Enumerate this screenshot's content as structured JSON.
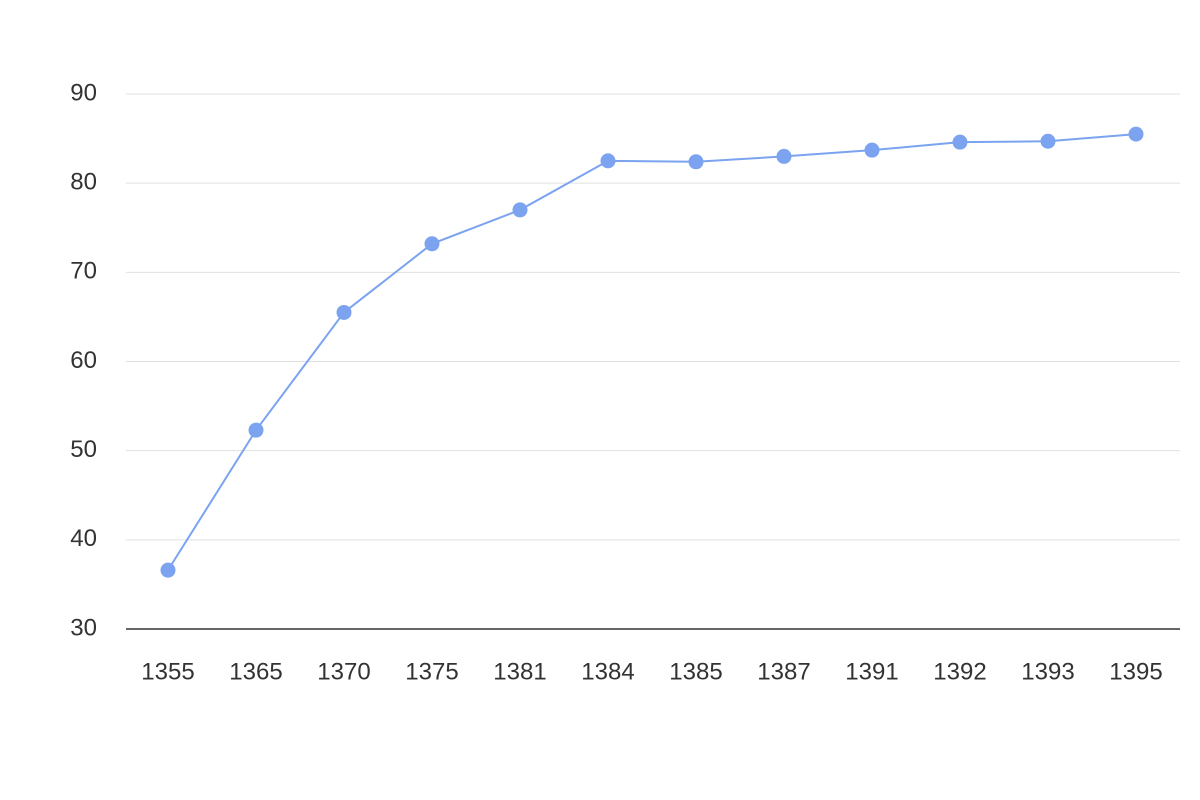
{
  "chart_data": {
    "type": "line",
    "categories": [
      "1355",
      "1365",
      "1370",
      "1375",
      "1381",
      "1384",
      "1385",
      "1387",
      "1391",
      "1392",
      "1393",
      "1395"
    ],
    "series": [
      {
        "color": "#7ba3f0",
        "values": [
          36.6,
          52.3,
          65.5,
          73.2,
          77.0,
          82.5,
          82.4,
          83.0,
          83.7,
          84.6,
          84.7,
          85.5
        ]
      }
    ],
    "ylim": [
      30,
      90
    ],
    "yticks": [
      30,
      40,
      50,
      60,
      70,
      80,
      90
    ],
    "grid": true
  }
}
